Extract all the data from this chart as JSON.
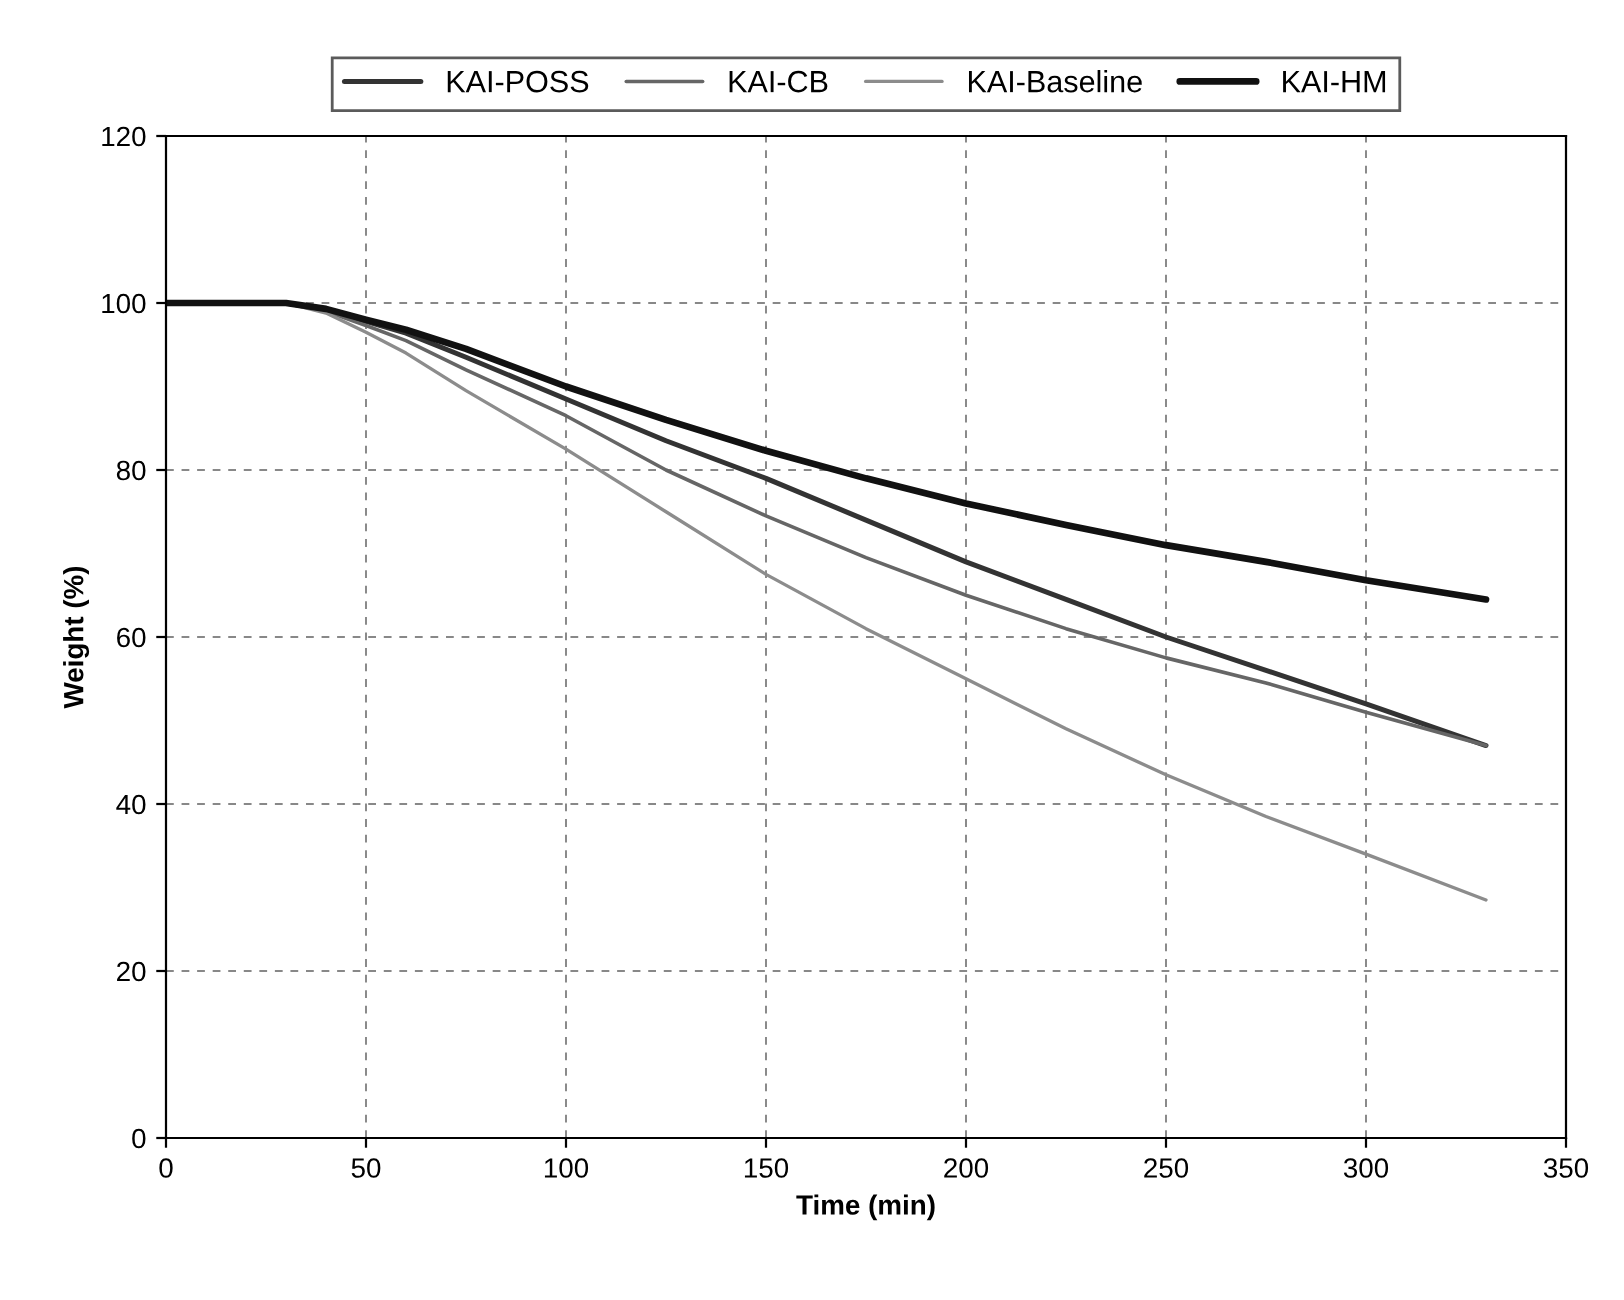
{
  "chart_data": {
    "type": "line",
    "xlabel": "Time (min)",
    "ylabel": "Weight (%)",
    "x": [
      0,
      10,
      20,
      30,
      40,
      50,
      60,
      75,
      100,
      125,
      150,
      175,
      200,
      225,
      250,
      275,
      300,
      330
    ],
    "series": [
      {
        "name": "KAI-POSS",
        "color": "#333333",
        "values": [
          100,
          100,
          100,
          100,
          99.2,
          97.8,
          96.4,
          93.5,
          88.5,
          83.5,
          79,
          74,
          69,
          64.5,
          60,
          56,
          52,
          47
        ]
      },
      {
        "name": "KAI-CB",
        "color": "#666666",
        "values": [
          100,
          100,
          100,
          100,
          99,
          97.3,
          95.5,
          92,
          86.5,
          80,
          74.5,
          69.5,
          65,
          61,
          57.5,
          54.5,
          51,
          47
        ]
      },
      {
        "name": "KAI-Baseline",
        "color": "#8c8c8c",
        "values": [
          100,
          100,
          100,
          100,
          98.8,
          96.5,
          94,
          89.5,
          82.5,
          75,
          67.5,
          61,
          55,
          49,
          43.5,
          38.5,
          34,
          28.5
        ]
      },
      {
        "name": "KAI-HM",
        "color": "#111111",
        "values": [
          100,
          100,
          100,
          100,
          99.3,
          98,
          96.8,
          94.5,
          90,
          86,
          82.3,
          79,
          76,
          73.4,
          71,
          69,
          66.8,
          64.5
        ]
      }
    ],
    "xlim": [
      0,
      350
    ],
    "xticks": [
      0,
      50,
      100,
      150,
      200,
      250,
      300,
      350
    ],
    "ylim": [
      0,
      120
    ],
    "yticks": [
      0,
      20,
      40,
      60,
      80,
      100,
      120
    ],
    "grid": true,
    "legend": "top",
    "marker": "none",
    "line_style": "solid"
  }
}
